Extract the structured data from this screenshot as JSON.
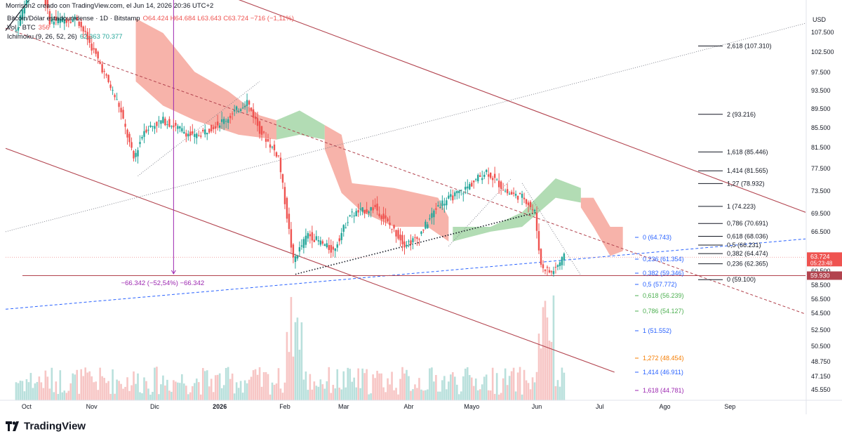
{
  "header": {
    "credit": "Morrison2 creado con TradingView.com, el Jun 14, 2026 20:36 UTC+2"
  },
  "legend": {
    "symbol": "Bitcoin/Dólar estadounidense · 1D · Bitstamp",
    "ohlc": "O64.424 H64.684 L63.643 C63.724 −716 (−1,11%)",
    "volume_label": "Vol · BTC",
    "volume_value": "356",
    "ichimoku_label": "Ichimoku (9, 26, 52, 26)",
    "ichimoku_values": "62.363 70.377"
  },
  "brand": {
    "name": "TradingView"
  },
  "colors": {
    "up": "#26a69a",
    "down": "#ef5350",
    "channel": "#b2434e",
    "cloud_bear": "#f6a69b",
    "cloud_bull": "#a5d6a7",
    "measure": "#9c27b0",
    "trend_blue": "#2962ff"
  },
  "chart_data": {
    "type": "candlestick",
    "currency": "USD",
    "x_ticks": [
      "Oct",
      "Nov",
      "Dic",
      "2026",
      "Feb",
      "Mar",
      "Abr",
      "Mayo",
      "Jun",
      "Jul",
      "Ago",
      "Sep"
    ],
    "y_ticks": [
      "107.500",
      "102.500",
      "97.500",
      "93.500",
      "89.500",
      "85.500",
      "81.500",
      "77.500",
      "73.500",
      "69.500",
      "66.500",
      "60.500",
      "58.500",
      "56.500",
      "54.500",
      "52.500",
      "50.500",
      "48.750",
      "47.150",
      "45.550"
    ],
    "price_label": {
      "value": "63.724",
      "countdown": "05:23:48"
    },
    "support_label": "59.930",
    "measure_label": "−66.342 (−52,54%) −66.342",
    "fib_right": [
      {
        "label": "2,618 (107.310)",
        "price": 107.31
      },
      {
        "label": "2 (93.216)",
        "price": 93.216
      },
      {
        "label": "1,618 (85.446)",
        "price": 85.446
      },
      {
        "label": "1,414 (81.565)",
        "price": 81.565
      },
      {
        "label": "1,27 (78.932)",
        "price": 78.932
      },
      {
        "label": "1 (74.223)",
        "price": 74.223
      },
      {
        "label": "0,786 (70.691)",
        "price": 70.691
      },
      {
        "label": "0,618 (68.036)",
        "price": 68.036
      },
      {
        "label": "0,5 (66.231)",
        "price": 66.231
      },
      {
        "label": "0,382 (64.474)",
        "price": 64.474
      },
      {
        "label": "0,236 (62.365)",
        "price": 62.365
      },
      {
        "label": "0 (59.100)",
        "price": 59.1
      }
    ],
    "fib_left": [
      {
        "label": "0 (64.743)",
        "price": 64.743,
        "color": "#2962ff"
      },
      {
        "label": "0,236 (61.354)",
        "price": 61.354,
        "color": "#2962ff"
      },
      {
        "label": "0,382 (59.346)",
        "price": 59.346,
        "color": "#2962ff"
      },
      {
        "label": "0,5 (57.772)",
        "price": 57.772,
        "color": "#2962ff"
      },
      {
        "label": "0,618 (56.239)",
        "price": 56.239,
        "color": "#4caf50"
      },
      {
        "label": "0,786 (54.127)",
        "price": 54.127,
        "color": "#4caf50"
      },
      {
        "label": "1 (51.552)",
        "price": 51.552,
        "color": "#2962ff"
      },
      {
        "label": "1,272 (48.454)",
        "price": 48.454,
        "color": "#f57c00"
      },
      {
        "label": "1,414 (46.911)",
        "price": 46.911,
        "color": "#2962ff"
      },
      {
        "label": "1,618 (44.781)",
        "price": 44.781,
        "color": "#9c27b0"
      }
    ],
    "price_path": [
      [
        "2025-09-26",
        110.5
      ],
      [
        "2025-10-06",
        124.0
      ],
      [
        "2025-10-12",
        112.5
      ],
      [
        "2025-10-25",
        113.0
      ],
      [
        "2025-11-04",
        104.5
      ],
      [
        "2025-11-14",
        95.0
      ],
      [
        "2025-11-21",
        84.0
      ],
      [
        "2025-11-26",
        90.0
      ],
      [
        "2025-12-05",
        92.0
      ],
      [
        "2025-12-20",
        88.5
      ],
      [
        "2026-01-05",
        92.5
      ],
      [
        "2026-01-14",
        96.0
      ],
      [
        "2026-01-20",
        90.0
      ],
      [
        "2026-01-29",
        84.5
      ],
      [
        "2026-02-05",
        63.0
      ],
      [
        "2026-02-12",
        68.5
      ],
      [
        "2026-02-24",
        65.0
      ],
      [
        "2026-03-04",
        72.5
      ],
      [
        "2026-03-16",
        74.0
      ],
      [
        "2026-03-30",
        66.5
      ],
      [
        "2026-04-05",
        67.5
      ],
      [
        "2026-04-15",
        74.5
      ],
      [
        "2026-04-27",
        77.5
      ],
      [
        "2026-05-08",
        81.5
      ],
      [
        "2026-05-18",
        77.0
      ],
      [
        "2026-05-26",
        76.0
      ],
      [
        "2026-05-31",
        73.0
      ],
      [
        "2026-06-03",
        62.0
      ],
      [
        "2026-06-08",
        60.5
      ],
      [
        "2026-06-14",
        63.7
      ]
    ]
  }
}
